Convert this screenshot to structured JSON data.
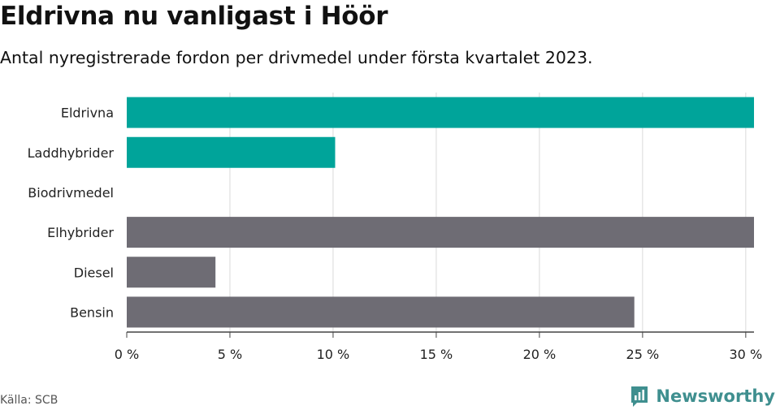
{
  "title": "Eldrivna nu vanligast i Höör",
  "subtitle": "Antal nyregistrerade fordon per drivmedel under första kvartalet 2023.",
  "source": "Källa: SCB",
  "brand": {
    "name": "Newsworthy",
    "logo_icon": "bar-chart-logo-icon"
  },
  "colors": {
    "highlight": "#00a49a",
    "other": "#6e6c74",
    "grid": "#d9d9d9",
    "axis": "#444444",
    "brand": "#3f8f8f"
  },
  "chart_data": {
    "type": "bar",
    "orientation": "horizontal",
    "categories": [
      "Eldrivna",
      "Laddhybrider",
      "Biodrivmedel",
      "Elhybrider",
      "Diesel",
      "Bensin"
    ],
    "values": [
      30.4,
      10.1,
      0,
      30.4,
      4.3,
      24.6
    ],
    "bar_colors": [
      "#00a49a",
      "#00a49a",
      "#00a49a",
      "#6e6c74",
      "#6e6c74",
      "#6e6c74"
    ],
    "xlim": [
      0,
      30.4
    ],
    "xticks": [
      0,
      5,
      10,
      15,
      20,
      25,
      30
    ],
    "xtick_labels": [
      "0 %",
      "5 %",
      "10 %",
      "15 %",
      "20 %",
      "25 %",
      "30 %"
    ],
    "grid": true
  }
}
